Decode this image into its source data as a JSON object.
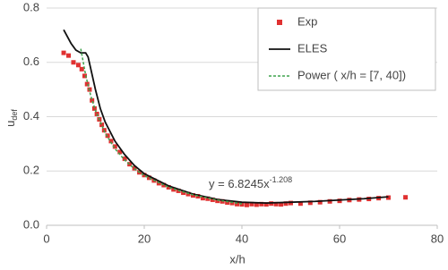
{
  "chart_data": {
    "type": "line",
    "xlabel": "x/h",
    "ylabel": "u",
    "ylabel_sub": "def",
    "annotation": "y = 6.8245x",
    "annotation_sup": "-1.208",
    "xlim": [
      0,
      80
    ],
    "xticks": [
      0,
      20,
      40,
      60,
      80
    ],
    "ylim": [
      0,
      0.8
    ],
    "yticks": [
      {
        "value": 0,
        "label": "0.0"
      },
      0.2,
      0.4,
      0.6,
      0.8
    ],
    "grid": true,
    "legend": "upper right",
    "series": [
      {
        "name": "Exp",
        "type": "scatter",
        "color": "#e03131",
        "x": [
          3.5,
          4.5,
          5.5,
          6.5,
          7.2,
          7.8,
          8.3,
          8.8,
          9.3,
          9.8,
          10.3,
          10.8,
          11.3,
          11.8,
          12.5,
          13.2,
          14,
          15,
          16,
          17,
          18,
          19,
          20,
          21,
          22,
          23,
          24,
          25,
          26,
          27,
          28,
          29,
          30,
          31,
          32,
          33,
          34,
          35,
          36,
          37,
          38,
          39,
          40,
          41,
          42,
          43,
          44,
          45,
          46,
          47,
          48,
          49,
          50,
          52,
          54,
          56,
          58,
          60,
          62,
          64,
          66,
          68,
          70,
          73.5
        ],
        "values": [
          0.635,
          0.625,
          0.6,
          0.59,
          0.575,
          0.55,
          0.52,
          0.5,
          0.46,
          0.43,
          0.41,
          0.39,
          0.37,
          0.35,
          0.33,
          0.31,
          0.29,
          0.27,
          0.245,
          0.225,
          0.21,
          0.195,
          0.185,
          0.175,
          0.165,
          0.155,
          0.148,
          0.14,
          0.132,
          0.127,
          0.12,
          0.115,
          0.11,
          0.107,
          0.1,
          0.098,
          0.094,
          0.09,
          0.088,
          0.084,
          0.082,
          0.078,
          0.077,
          0.075,
          0.078,
          0.076,
          0.078,
          0.077,
          0.08,
          0.078,
          0.077,
          0.08,
          0.082,
          0.08,
          0.083,
          0.085,
          0.088,
          0.09,
          0.093,
          0.095,
          0.097,
          0.1,
          0.102,
          0.103
        ]
      },
      {
        "name": "ELES",
        "type": "line",
        "color": "#111111",
        "x": [
          3.5,
          5,
          6,
          7,
          8,
          8.5,
          9,
          10,
          11,
          12,
          14,
          16,
          18,
          20,
          25,
          30,
          35,
          40,
          45,
          50,
          55,
          60,
          65,
          70
        ],
        "values": [
          0.72,
          0.67,
          0.645,
          0.635,
          0.635,
          0.62,
          0.58,
          0.5,
          0.43,
          0.38,
          0.31,
          0.26,
          0.22,
          0.19,
          0.145,
          0.115,
          0.095,
          0.085,
          0.082,
          0.085,
          0.088,
          0.093,
          0.098,
          0.105
        ]
      },
      {
        "name": "Power ( x/h = [7, 40])",
        "type": "dashed",
        "color": "#3fa34d",
        "x": [
          7,
          8,
          9,
          10,
          12,
          14,
          16,
          18,
          20,
          25,
          30,
          35,
          40
        ],
        "values": [
          0.65,
          0.553,
          0.48,
          0.423,
          0.339,
          0.282,
          0.24,
          0.208,
          0.183,
          0.14,
          0.112,
          0.093,
          0.079
        ]
      }
    ]
  }
}
